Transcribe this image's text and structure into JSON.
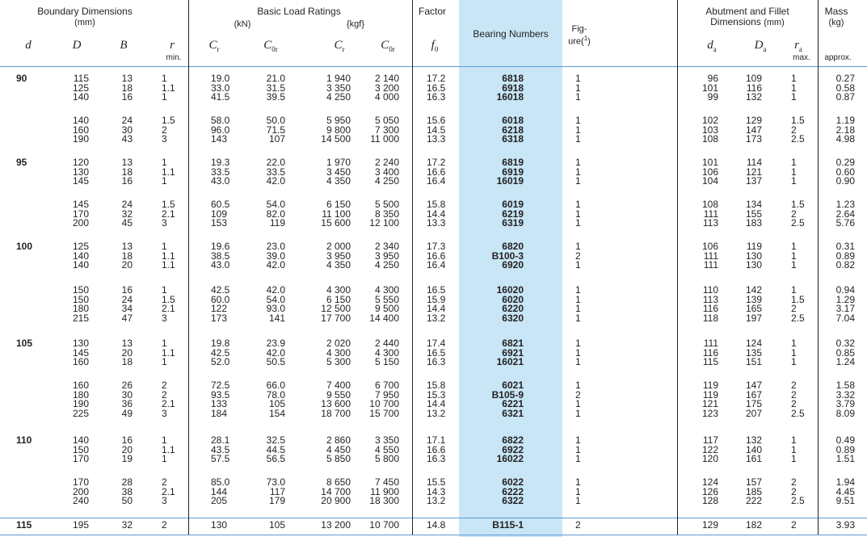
{
  "headers": {
    "boundary": "Boundary Dimensions",
    "boundary_unit": "(mm)",
    "basic": "Basic Load Ratings",
    "kn": "(kN)",
    "kgf": "{kgf}",
    "factor": "Factor",
    "bearing_numbers": "Bearing Numbers",
    "figure_1": "Fig-",
    "figure_2": "ure(",
    "figure_sup": "1",
    "figure_3": ")",
    "abutment": "Abutment and Fillet",
    "abutment_2": "Dimensions",
    "abutment_unit": "(mm)",
    "mass": "Mass",
    "mass_unit": "(kg)",
    "d": "d",
    "D": "D",
    "B": "B",
    "r": "r",
    "min": "min.",
    "Cr": "C",
    "Cr_sub": "r",
    "C0r": "C",
    "C0r_sub": "0r",
    "Cr2": "C",
    "Cr2_sub": "r",
    "C0r2": "C",
    "C0r2_sub": "0r",
    "f0": "f",
    "f0_sub": "0",
    "da": "d",
    "da_sub": "a",
    "Da": "D",
    "Da_sub": "a",
    "ra": "r",
    "ra_sub": "a",
    "max": "max.",
    "approx": "approx."
  },
  "accent_color": "#c8e6f5",
  "groups": [
    {
      "d": "90",
      "D": [
        "115",
        "125",
        "140"
      ],
      "B": [
        "13",
        "18",
        "16"
      ],
      "r": [
        "1",
        "1.1",
        "1"
      ],
      "Cr": [
        "19.0",
        "33.0",
        "41.5"
      ],
      "C0r": [
        "21.0",
        "31.5",
        "39.5"
      ],
      "Crk": [
        "1 940",
        "3 350",
        "4 250"
      ],
      "C0rk": [
        "2 140",
        "3 200",
        "4 000"
      ],
      "f0": [
        "17.2",
        "16.5",
        "16.3"
      ],
      "bn": [
        "6818",
        "6918",
        "16018"
      ],
      "fig": [
        "1",
        "1",
        "1"
      ],
      "da": [
        "96",
        "101",
        "99"
      ],
      "Da": [
        "109",
        "116",
        "132"
      ],
      "ra": [
        "1",
        "1",
        "1"
      ],
      "mass": [
        "0.27",
        "0.58",
        "0.87"
      ]
    },
    {
      "d": "",
      "D": [
        "140",
        "160",
        "190"
      ],
      "B": [
        "24",
        "30",
        "43"
      ],
      "r": [
        "1.5",
        "2",
        "3"
      ],
      "Cr": [
        "58.0",
        "96.0",
        "143"
      ],
      "C0r": [
        "50.0",
        "71.5",
        "107"
      ],
      "Crk": [
        "5 950",
        "9 800",
        "14 500"
      ],
      "C0rk": [
        "5 050",
        "7 300",
        "11 000"
      ],
      "f0": [
        "15.6",
        "14.5",
        "13.3"
      ],
      "bn": [
        "6018",
        "6218",
        "6318"
      ],
      "fig": [
        "1",
        "1",
        "1"
      ],
      "da": [
        "102",
        "103",
        "108"
      ],
      "Da": [
        "129",
        "147",
        "173"
      ],
      "ra": [
        "1.5",
        "2",
        "2.5"
      ],
      "mass": [
        "1.19",
        "2.18",
        "4.98"
      ]
    },
    {
      "d": "95",
      "D": [
        "120",
        "130",
        "145"
      ],
      "B": [
        "13",
        "18",
        "16"
      ],
      "r": [
        "1",
        "1.1",
        "1"
      ],
      "Cr": [
        "19.3",
        "33.5",
        "43.0"
      ],
      "C0r": [
        "22.0",
        "33.5",
        "42.0"
      ],
      "Crk": [
        "1 970",
        "3 450",
        "4 350"
      ],
      "C0rk": [
        "2 240",
        "3 400",
        "4 250"
      ],
      "f0": [
        "17.2",
        "16.6",
        "16.4"
      ],
      "bn": [
        "6819",
        "6919",
        "16019"
      ],
      "fig": [
        "1",
        "1",
        "1"
      ],
      "da": [
        "101",
        "106",
        "104"
      ],
      "Da": [
        "114",
        "121",
        "137"
      ],
      "ra": [
        "1",
        "1",
        "1"
      ],
      "mass": [
        "0.29",
        "0.60",
        "0.90"
      ]
    },
    {
      "d": "",
      "D": [
        "145",
        "170",
        "200"
      ],
      "B": [
        "24",
        "32",
        "45"
      ],
      "r": [
        "1.5",
        "2.1",
        "3"
      ],
      "Cr": [
        "60.5",
        "109",
        "153"
      ],
      "C0r": [
        "54.0",
        "82.0",
        "119"
      ],
      "Crk": [
        "6 150",
        "11 100",
        "15 600"
      ],
      "C0rk": [
        "5 500",
        "8 350",
        "12 100"
      ],
      "f0": [
        "15.8",
        "14.4",
        "13.3"
      ],
      "bn": [
        "6019",
        "6219",
        "6319"
      ],
      "fig": [
        "1",
        "1",
        "1"
      ],
      "da": [
        "108",
        "111",
        "113"
      ],
      "Da": [
        "134",
        "155",
        "183"
      ],
      "ra": [
        "1.5",
        "2",
        "2.5"
      ],
      "mass": [
        "1.23",
        "2.64",
        "5.76"
      ]
    },
    {
      "d": "100",
      "D": [
        "125",
        "140",
        "140"
      ],
      "B": [
        "13",
        "18",
        "20"
      ],
      "r": [
        "1",
        "1.1",
        "1.1"
      ],
      "Cr": [
        "19.6",
        "38.5",
        "43.0"
      ],
      "C0r": [
        "23.0",
        "39.0",
        "42.0"
      ],
      "Crk": [
        "2 000",
        "3 950",
        "4 350"
      ],
      "C0rk": [
        "2 340",
        "3 950",
        "4 250"
      ],
      "f0": [
        "17.3",
        "16.6",
        "16.4"
      ],
      "bn": [
        "6820",
        "B100-3",
        "6920"
      ],
      "fig": [
        "1",
        "2",
        "1"
      ],
      "da": [
        "106",
        "111",
        "111"
      ],
      "Da": [
        "119",
        "130",
        "130"
      ],
      "ra": [
        "1",
        "1",
        "1"
      ],
      "mass": [
        "0.31",
        "0.89",
        "0.82"
      ]
    },
    {
      "d": "",
      "D": [
        "150",
        "150",
        "180",
        "215"
      ],
      "B": [
        "16",
        "24",
        "34",
        "47"
      ],
      "r": [
        "1",
        "1.5",
        "2.1",
        "3"
      ],
      "Cr": [
        "42.5",
        "60.0",
        "122",
        "173"
      ],
      "C0r": [
        "42.0",
        "54.0",
        "93.0",
        "141"
      ],
      "Crk": [
        "4 300",
        "6 150",
        "12 500",
        "17 700"
      ],
      "C0rk": [
        "4 300",
        "5 550",
        "9 500",
        "14 400"
      ],
      "f0": [
        "16.5",
        "15.9",
        "14.4",
        "13.2"
      ],
      "bn": [
        "16020",
        "6020",
        "6220",
        "6320"
      ],
      "fig": [
        "1",
        "1",
        "1",
        "1"
      ],
      "da": [
        "110",
        "113",
        "116",
        "118"
      ],
      "Da": [
        "142",
        "139",
        "165",
        "197"
      ],
      "ra": [
        "1",
        "1.5",
        "2",
        "2.5"
      ],
      "mass": [
        "0.94",
        "1.29",
        "3.17",
        "7.04"
      ]
    },
    {
      "d": "105",
      "D": [
        "130",
        "145",
        "160"
      ],
      "B": [
        "13",
        "20",
        "18"
      ],
      "r": [
        "1",
        "1.1",
        "1"
      ],
      "Cr": [
        "19.8",
        "42.5",
        "52.0"
      ],
      "C0r": [
        "23.9",
        "42.0",
        "50.5"
      ],
      "Crk": [
        "2 020",
        "4 300",
        "5 300"
      ],
      "C0rk": [
        "2 440",
        "4 300",
        "5 150"
      ],
      "f0": [
        "17.4",
        "16.5",
        "16.3"
      ],
      "bn": [
        "6821",
        "6921",
        "16021"
      ],
      "fig": [
        "1",
        "1",
        "1"
      ],
      "da": [
        "111",
        "116",
        "115"
      ],
      "Da": [
        "124",
        "135",
        "151"
      ],
      "ra": [
        "1",
        "1",
        "1"
      ],
      "mass": [
        "0.32",
        "0.85",
        "1.24"
      ]
    },
    {
      "d": "",
      "D": [
        "160",
        "180",
        "190",
        "225"
      ],
      "B": [
        "26",
        "30",
        "36",
        "49"
      ],
      "r": [
        "2",
        "2",
        "2.1",
        "3"
      ],
      "Cr": [
        "72.5",
        "93.5",
        "133",
        "184"
      ],
      "C0r": [
        "66.0",
        "78.0",
        "105",
        "154"
      ],
      "Crk": [
        "7 400",
        "9 550",
        "13 600",
        "18 700"
      ],
      "C0rk": [
        "6 700",
        "7 950",
        "10 700",
        "15 700"
      ],
      "f0": [
        "15.8",
        "15.3",
        "14.4",
        "13.2"
      ],
      "bn": [
        "6021",
        "B105-9",
        "6221",
        "6321"
      ],
      "fig": [
        "1",
        "2",
        "1",
        "1"
      ],
      "da": [
        "119",
        "119",
        "121",
        "123"
      ],
      "Da": [
        "147",
        "167",
        "175",
        "207"
      ],
      "ra": [
        "2",
        "2",
        "2",
        "2.5"
      ],
      "mass": [
        "1.58",
        "3.32",
        "3.79",
        "8.09"
      ]
    },
    {
      "d": "110",
      "D": [
        "140",
        "150",
        "170"
      ],
      "B": [
        "16",
        "20",
        "19"
      ],
      "r": [
        "1",
        "1.1",
        "1"
      ],
      "Cr": [
        "28.1",
        "43.5",
        "57.5"
      ],
      "C0r": [
        "32.5",
        "44.5",
        "56.5"
      ],
      "Crk": [
        "2 860",
        "4 450",
        "5 850"
      ],
      "C0rk": [
        "3 350",
        "4 550",
        "5 800"
      ],
      "f0": [
        "17.1",
        "16.6",
        "16.3"
      ],
      "bn": [
        "6822",
        "6922",
        "16022"
      ],
      "fig": [
        "1",
        "1",
        "1"
      ],
      "da": [
        "117",
        "122",
        "120"
      ],
      "Da": [
        "132",
        "140",
        "161"
      ],
      "ra": [
        "1",
        "1",
        "1"
      ],
      "mass": [
        "0.49",
        "0.89",
        "1.51"
      ]
    },
    {
      "d": "",
      "D": [
        "170",
        "200",
        "240"
      ],
      "B": [
        "28",
        "38",
        "50"
      ],
      "r": [
        "2",
        "2.1",
        "3"
      ],
      "Cr": [
        "85.0",
        "144",
        "205"
      ],
      "C0r": [
        "73.0",
        "117",
        "179"
      ],
      "Crk": [
        "8 650",
        "14 700",
        "20 900"
      ],
      "C0rk": [
        "7 450",
        "11 900",
        "18 300"
      ],
      "f0": [
        "15.5",
        "14.3",
        "13.2"
      ],
      "bn": [
        "6022",
        "6222",
        "6322"
      ],
      "fig": [
        "1",
        "1",
        "1"
      ],
      "da": [
        "124",
        "126",
        "128"
      ],
      "Da": [
        "157",
        "185",
        "222"
      ],
      "ra": [
        "2",
        "2",
        "2.5"
      ],
      "mass": [
        "1.94",
        "4.45",
        "9.51"
      ]
    },
    {
      "d": "115",
      "D": [
        "195"
      ],
      "B": [
        "32"
      ],
      "r": [
        "2"
      ],
      "Cr": [
        "130"
      ],
      "C0r": [
        "105"
      ],
      "Crk": [
        "13 200"
      ],
      "C0rk": [
        "10 700"
      ],
      "f0": [
        "14.8"
      ],
      "bn": [
        "B115-1"
      ],
      "fig": [
        "2"
      ],
      "da": [
        "129"
      ],
      "Da": [
        "182"
      ],
      "ra": [
        "2"
      ],
      "mass": [
        "3.93"
      ]
    }
  ]
}
